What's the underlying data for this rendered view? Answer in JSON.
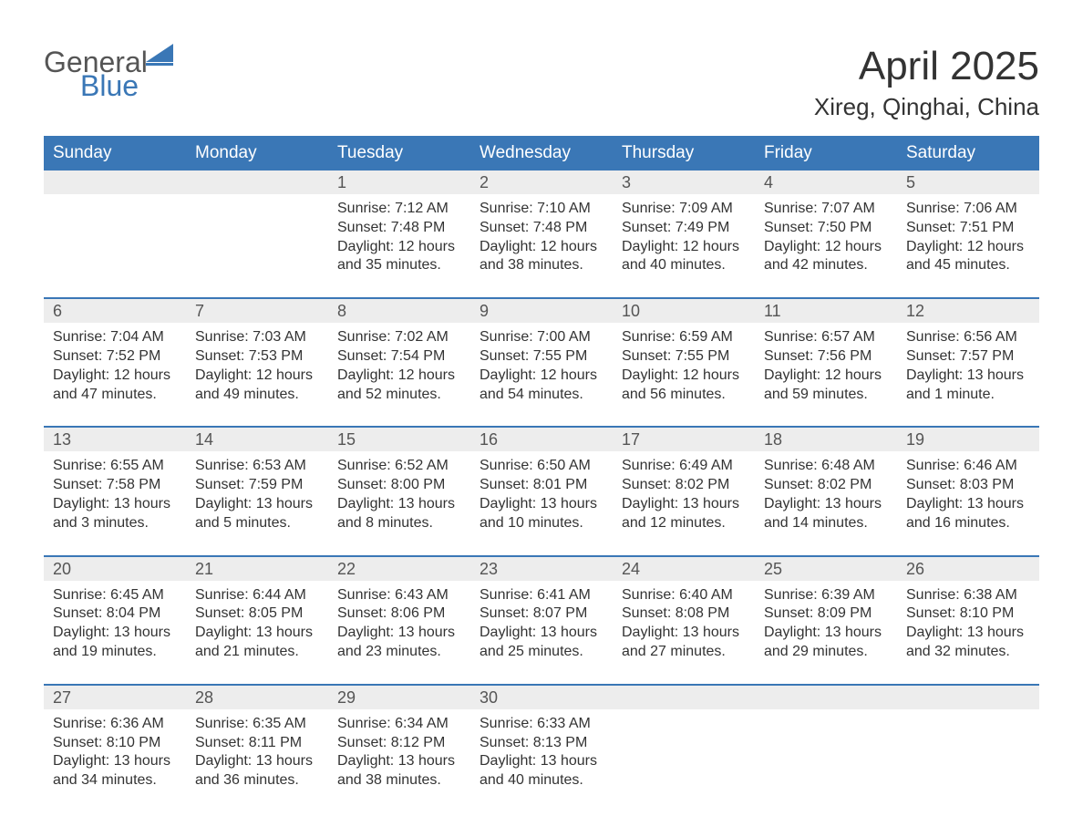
{
  "logo": {
    "word1": "General",
    "word2": "Blue",
    "accent_color": "#3a77b6",
    "text_color": "#555555"
  },
  "title": "April 2025",
  "location": "Xireg, Qinghai, China",
  "colors": {
    "header_bg": "#3a77b6",
    "header_text": "#ffffff",
    "num_bg": "#ededed",
    "border": "#3a77b6",
    "body_text": "#333333"
  },
  "day_labels": [
    "Sunday",
    "Monday",
    "Tuesday",
    "Wednesday",
    "Thursday",
    "Friday",
    "Saturday"
  ],
  "weeks": [
    [
      {
        "num": "",
        "lines": []
      },
      {
        "num": "",
        "lines": []
      },
      {
        "num": "1",
        "lines": [
          "Sunrise: 7:12 AM",
          "Sunset: 7:48 PM",
          "Daylight: 12 hours",
          "and 35 minutes."
        ]
      },
      {
        "num": "2",
        "lines": [
          "Sunrise: 7:10 AM",
          "Sunset: 7:48 PM",
          "Daylight: 12 hours",
          "and 38 minutes."
        ]
      },
      {
        "num": "3",
        "lines": [
          "Sunrise: 7:09 AM",
          "Sunset: 7:49 PM",
          "Daylight: 12 hours",
          "and 40 minutes."
        ]
      },
      {
        "num": "4",
        "lines": [
          "Sunrise: 7:07 AM",
          "Sunset: 7:50 PM",
          "Daylight: 12 hours",
          "and 42 minutes."
        ]
      },
      {
        "num": "5",
        "lines": [
          "Sunrise: 7:06 AM",
          "Sunset: 7:51 PM",
          "Daylight: 12 hours",
          "and 45 minutes."
        ]
      }
    ],
    [
      {
        "num": "6",
        "lines": [
          "Sunrise: 7:04 AM",
          "Sunset: 7:52 PM",
          "Daylight: 12 hours",
          "and 47 minutes."
        ]
      },
      {
        "num": "7",
        "lines": [
          "Sunrise: 7:03 AM",
          "Sunset: 7:53 PM",
          "Daylight: 12 hours",
          "and 49 minutes."
        ]
      },
      {
        "num": "8",
        "lines": [
          "Sunrise: 7:02 AM",
          "Sunset: 7:54 PM",
          "Daylight: 12 hours",
          "and 52 minutes."
        ]
      },
      {
        "num": "9",
        "lines": [
          "Sunrise: 7:00 AM",
          "Sunset: 7:55 PM",
          "Daylight: 12 hours",
          "and 54 minutes."
        ]
      },
      {
        "num": "10",
        "lines": [
          "Sunrise: 6:59 AM",
          "Sunset: 7:55 PM",
          "Daylight: 12 hours",
          "and 56 minutes."
        ]
      },
      {
        "num": "11",
        "lines": [
          "Sunrise: 6:57 AM",
          "Sunset: 7:56 PM",
          "Daylight: 12 hours",
          "and 59 minutes."
        ]
      },
      {
        "num": "12",
        "lines": [
          "Sunrise: 6:56 AM",
          "Sunset: 7:57 PM",
          "Daylight: 13 hours",
          "and 1 minute."
        ]
      }
    ],
    [
      {
        "num": "13",
        "lines": [
          "Sunrise: 6:55 AM",
          "Sunset: 7:58 PM",
          "Daylight: 13 hours",
          "and 3 minutes."
        ]
      },
      {
        "num": "14",
        "lines": [
          "Sunrise: 6:53 AM",
          "Sunset: 7:59 PM",
          "Daylight: 13 hours",
          "and 5 minutes."
        ]
      },
      {
        "num": "15",
        "lines": [
          "Sunrise: 6:52 AM",
          "Sunset: 8:00 PM",
          "Daylight: 13 hours",
          "and 8 minutes."
        ]
      },
      {
        "num": "16",
        "lines": [
          "Sunrise: 6:50 AM",
          "Sunset: 8:01 PM",
          "Daylight: 13 hours",
          "and 10 minutes."
        ]
      },
      {
        "num": "17",
        "lines": [
          "Sunrise: 6:49 AM",
          "Sunset: 8:02 PM",
          "Daylight: 13 hours",
          "and 12 minutes."
        ]
      },
      {
        "num": "18",
        "lines": [
          "Sunrise: 6:48 AM",
          "Sunset: 8:02 PM",
          "Daylight: 13 hours",
          "and 14 minutes."
        ]
      },
      {
        "num": "19",
        "lines": [
          "Sunrise: 6:46 AM",
          "Sunset: 8:03 PM",
          "Daylight: 13 hours",
          "and 16 minutes."
        ]
      }
    ],
    [
      {
        "num": "20",
        "lines": [
          "Sunrise: 6:45 AM",
          "Sunset: 8:04 PM",
          "Daylight: 13 hours",
          "and 19 minutes."
        ]
      },
      {
        "num": "21",
        "lines": [
          "Sunrise: 6:44 AM",
          "Sunset: 8:05 PM",
          "Daylight: 13 hours",
          "and 21 minutes."
        ]
      },
      {
        "num": "22",
        "lines": [
          "Sunrise: 6:43 AM",
          "Sunset: 8:06 PM",
          "Daylight: 13 hours",
          "and 23 minutes."
        ]
      },
      {
        "num": "23",
        "lines": [
          "Sunrise: 6:41 AM",
          "Sunset: 8:07 PM",
          "Daylight: 13 hours",
          "and 25 minutes."
        ]
      },
      {
        "num": "24",
        "lines": [
          "Sunrise: 6:40 AM",
          "Sunset: 8:08 PM",
          "Daylight: 13 hours",
          "and 27 minutes."
        ]
      },
      {
        "num": "25",
        "lines": [
          "Sunrise: 6:39 AM",
          "Sunset: 8:09 PM",
          "Daylight: 13 hours",
          "and 29 minutes."
        ]
      },
      {
        "num": "26",
        "lines": [
          "Sunrise: 6:38 AM",
          "Sunset: 8:10 PM",
          "Daylight: 13 hours",
          "and 32 minutes."
        ]
      }
    ],
    [
      {
        "num": "27",
        "lines": [
          "Sunrise: 6:36 AM",
          "Sunset: 8:10 PM",
          "Daylight: 13 hours",
          "and 34 minutes."
        ]
      },
      {
        "num": "28",
        "lines": [
          "Sunrise: 6:35 AM",
          "Sunset: 8:11 PM",
          "Daylight: 13 hours",
          "and 36 minutes."
        ]
      },
      {
        "num": "29",
        "lines": [
          "Sunrise: 6:34 AM",
          "Sunset: 8:12 PM",
          "Daylight: 13 hours",
          "and 38 minutes."
        ]
      },
      {
        "num": "30",
        "lines": [
          "Sunrise: 6:33 AM",
          "Sunset: 8:13 PM",
          "Daylight: 13 hours",
          "and 40 minutes."
        ]
      },
      {
        "num": "",
        "lines": []
      },
      {
        "num": "",
        "lines": []
      },
      {
        "num": "",
        "lines": []
      }
    ]
  ]
}
